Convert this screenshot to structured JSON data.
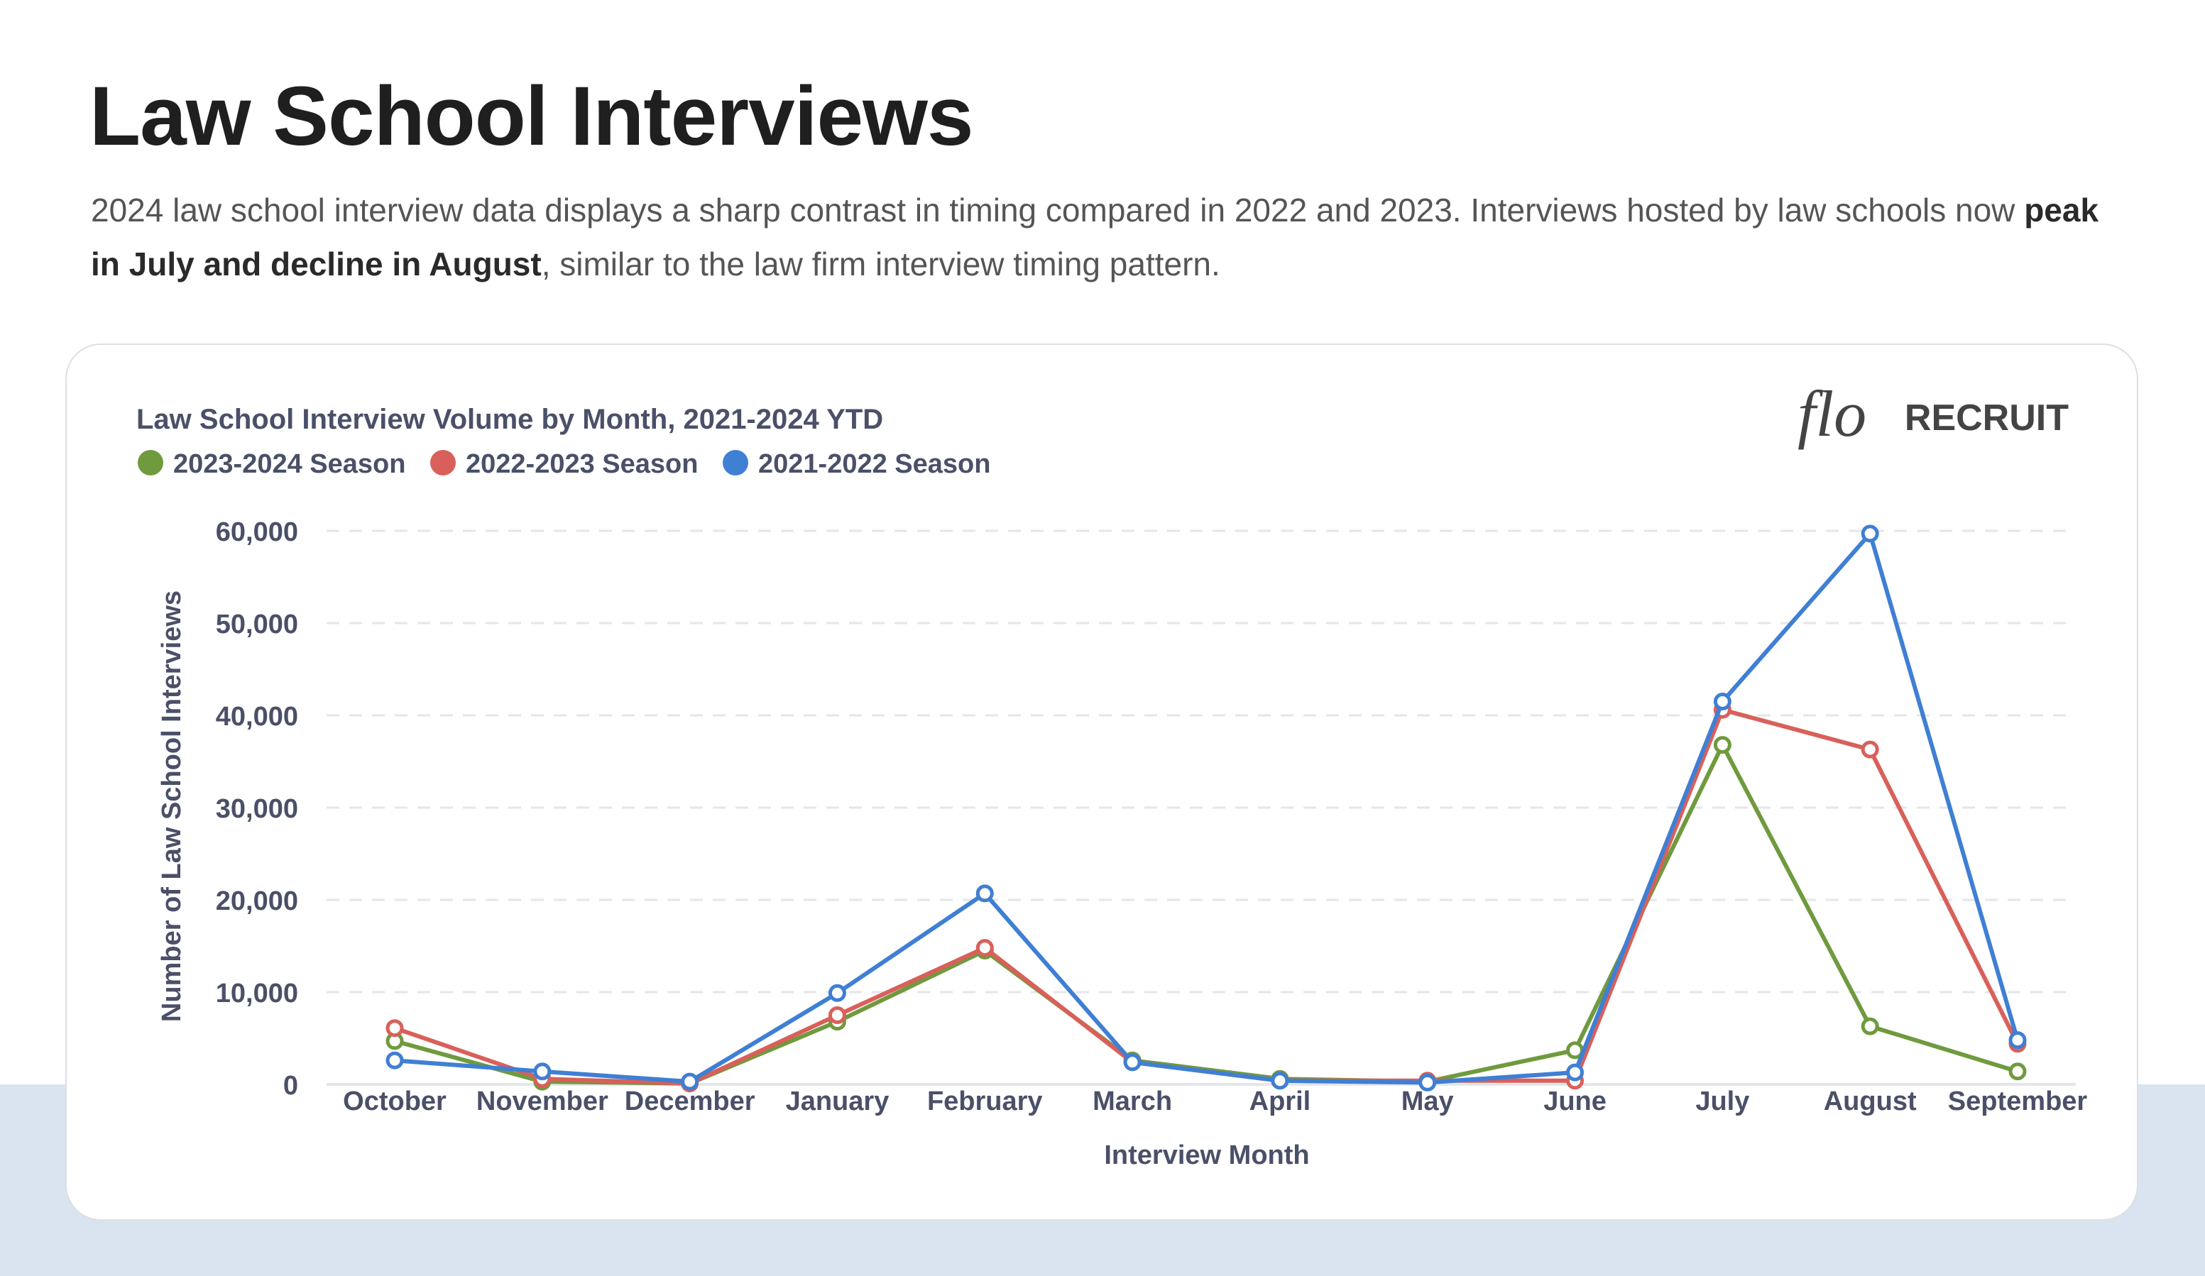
{
  "page": {
    "title": "Law School Interviews",
    "description_before": "2024 law school interview data displays a sharp contrast in timing compared in 2022 and 2023. Interviews hosted by law schools now ",
    "description_bold": "peak in July and decline in August",
    "description_after": ", similar to the law firm interview timing pattern."
  },
  "logo": {
    "script": "flo",
    "word": "RECRUIT"
  },
  "chart_data": {
    "type": "line",
    "title": "Law School Interview Volume by Month, 2021-2024 YTD",
    "xlabel": "Interview Month",
    "ylabel": "Number of Law School Interviews",
    "ylim": [
      0,
      60000
    ],
    "yticks": [
      "0",
      "10,000",
      "20,000",
      "30,000",
      "40,000",
      "50,000",
      "60,000"
    ],
    "grid": true,
    "legend_position": "top-left",
    "categories": [
      "October",
      "November",
      "December",
      "January",
      "February",
      "March",
      "April",
      "May",
      "June",
      "July",
      "August",
      "September"
    ],
    "series": [
      {
        "name": "2023-2024 Season",
        "color": "#6f9a3e",
        "values": [
          4700,
          300,
          100,
          6800,
          14500,
          2600,
          600,
          300,
          3700,
          36800,
          6300,
          1400
        ]
      },
      {
        "name": "2022-2023 Season",
        "color": "#d9605a",
        "values": [
          6100,
          600,
          100,
          7500,
          14800,
          2400,
          400,
          400,
          400,
          40600,
          36300,
          4400
        ]
      },
      {
        "name": "2021-2022 Season",
        "color": "#3f7fd4",
        "values": [
          2600,
          1400,
          300,
          9900,
          20700,
          2400,
          400,
          200,
          1300,
          41500,
          59700,
          4800
        ]
      }
    ]
  }
}
